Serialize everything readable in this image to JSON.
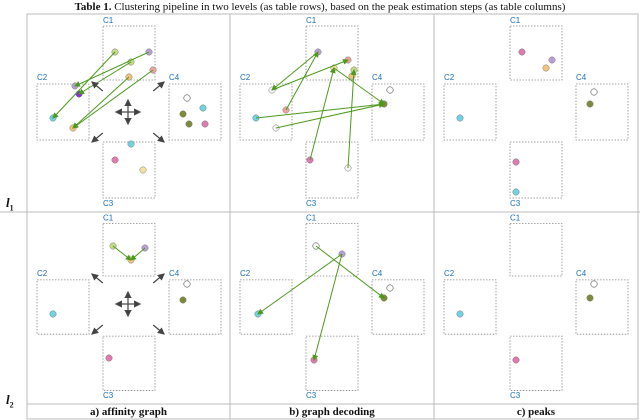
{
  "caption": {
    "label": "Table 1.",
    "text": "Clustering pipeline in two levels (as table rows), based on the peak estimation steps (as table columns)"
  },
  "rows": [
    "l",
    "l"
  ],
  "row_subs": [
    "1",
    "2"
  ],
  "columns": [
    "a) affinity graph",
    "b) graph decoding",
    "c) peaks"
  ],
  "cluster_labels": [
    "C1",
    "C2",
    "C3",
    "C4"
  ],
  "colors": {
    "arrow": "#4c9a1c",
    "box": "#888888",
    "label": "#1a6fb8",
    "pink": "#e07bb0",
    "green": "#c4dd85",
    "purple": "#b9a0d3",
    "salmon": "#f0a39d",
    "orange": "#f4c479",
    "cyan": "#6fd3e0",
    "olive": "#7b8b3a",
    "violet": "#8a2be2",
    "blue": "#5ab1d8",
    "yellow": "#f4e3a0"
  }
}
